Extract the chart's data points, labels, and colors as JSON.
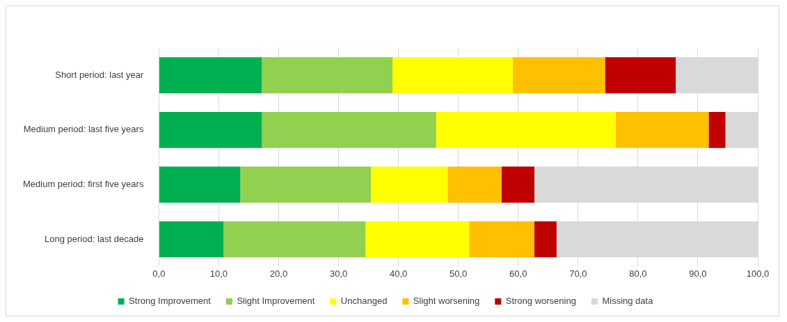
{
  "chart_data": {
    "type": "bar",
    "orientation": "horizontal",
    "stacked": true,
    "categories": [
      "Short period: last year",
      "Medium period: last five years",
      "Medium period: first five years",
      "Long period: last decade"
    ],
    "series": [
      {
        "name": "Strong Improvement",
        "color": "#00b050",
        "values": [
          17.2,
          17.2,
          13.6,
          10.8
        ]
      },
      {
        "name": "Slight Improvement",
        "color": "#92d050",
        "values": [
          21.8,
          29.1,
          21.8,
          23.7
        ]
      },
      {
        "name": "Unchanged",
        "color": "#ffff00",
        "values": [
          20.1,
          30.0,
          12.8,
          17.3
        ]
      },
      {
        "name": "Slight worsening",
        "color": "#ffc000",
        "values": [
          15.4,
          15.5,
          9.0,
          10.9
        ]
      },
      {
        "name": "Strong worsening",
        "color": "#c00000",
        "values": [
          11.8,
          2.8,
          5.5,
          3.7
        ]
      },
      {
        "name": "Missing data",
        "color": "#d9d9d9",
        "values": [
          13.7,
          5.4,
          37.3,
          33.6
        ]
      }
    ],
    "xlim": [
      0,
      100
    ],
    "xticks": [
      {
        "value": 0,
        "label": "0,0"
      },
      {
        "value": 10,
        "label": "10,0"
      },
      {
        "value": 20,
        "label": "20,0"
      },
      {
        "value": 30,
        "label": "30,0"
      },
      {
        "value": 40,
        "label": "40,0"
      },
      {
        "value": 50,
        "label": "50,0"
      },
      {
        "value": 60,
        "label": "60,0"
      },
      {
        "value": 70,
        "label": "70,0"
      },
      {
        "value": 80,
        "label": "80,0"
      },
      {
        "value": 90,
        "label": "90,0"
      },
      {
        "value": 100,
        "label": "100,0"
      }
    ],
    "grid": "x",
    "legend": "bottom"
  }
}
